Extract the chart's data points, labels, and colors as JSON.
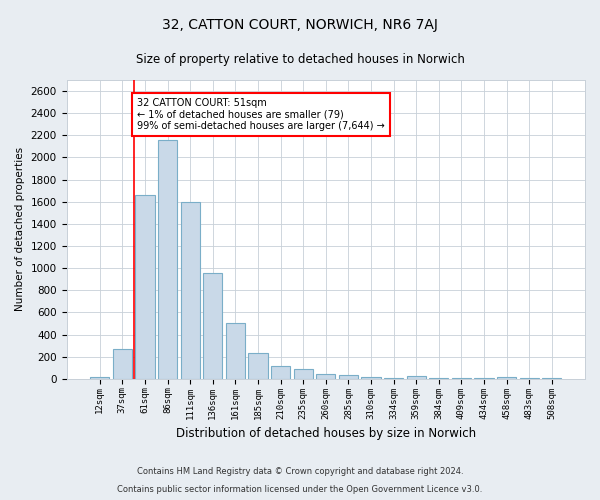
{
  "title": "32, CATTON COURT, NORWICH, NR6 7AJ",
  "subtitle": "Size of property relative to detached houses in Norwich",
  "xlabel": "Distribution of detached houses by size in Norwich",
  "ylabel": "Number of detached properties",
  "categories": [
    "12sqm",
    "37sqm",
    "61sqm",
    "86sqm",
    "111sqm",
    "136sqm",
    "161sqm",
    "185sqm",
    "210sqm",
    "235sqm",
    "260sqm",
    "285sqm",
    "310sqm",
    "334sqm",
    "359sqm",
    "384sqm",
    "409sqm",
    "434sqm",
    "458sqm",
    "483sqm",
    "508sqm"
  ],
  "values": [
    20,
    270,
    1660,
    2160,
    1600,
    960,
    500,
    235,
    115,
    90,
    45,
    35,
    20,
    10,
    22,
    10,
    5,
    5,
    20,
    5,
    5
  ],
  "bar_color": "#c9d9e8",
  "bar_edge_color": "#7aaec8",
  "annotation_text": "32 CATTON COURT: 51sqm\n← 1% of detached houses are smaller (79)\n99% of semi-detached houses are larger (7,644) →",
  "annotation_box_color": "white",
  "annotation_box_edge": "red",
  "vline_color": "red",
  "vline_x": 1.5,
  "ylim": [
    0,
    2700
  ],
  "yticks": [
    0,
    200,
    400,
    600,
    800,
    1000,
    1200,
    1400,
    1600,
    1800,
    2000,
    2200,
    2400,
    2600
  ],
  "grid_color": "#c8d0d8",
  "background_color": "#e8edf2",
  "plot_background": "white",
  "footer1": "Contains HM Land Registry data © Crown copyright and database right 2024.",
  "footer2": "Contains public sector information licensed under the Open Government Licence v3.0."
}
